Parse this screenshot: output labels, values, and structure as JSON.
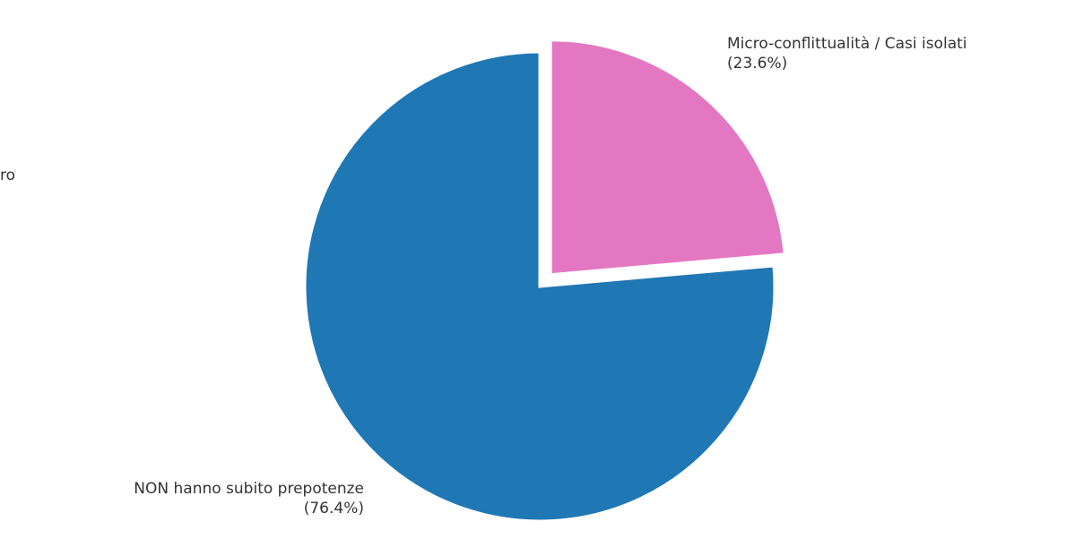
{
  "chart_data": {
    "type": "pie",
    "title": "",
    "start_angle_deg": 90,
    "direction": "counterclockwise",
    "slices": [
      {
        "label": "NON hanno subito prepotenze",
        "value": 76.4,
        "pct_text": "(76.4%)",
        "color": "#1f77b4",
        "exploded": false
      },
      {
        "label": "Micro-conflittualità / Casi isolati",
        "value": 23.6,
        "pct_text": "(23.6%)",
        "color": "#e377c2",
        "exploded": true
      }
    ],
    "clipped_label_fragment": "ro"
  }
}
